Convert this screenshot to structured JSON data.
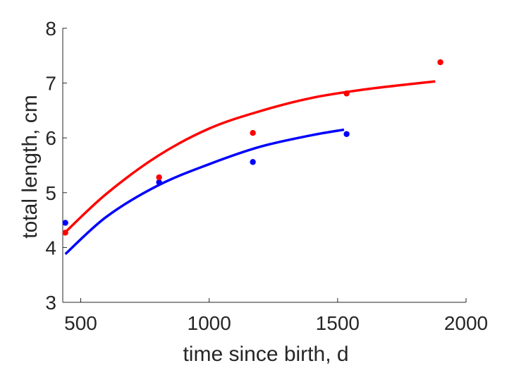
{
  "chart_data": {
    "type": "scatter",
    "title": "",
    "xlabel": "time since birth, d",
    "ylabel": "total length, cm",
    "xlim": [
      430,
      2000
    ],
    "ylim": [
      3,
      8
    ],
    "x_ticks": [
      500,
      1000,
      1500,
      2000
    ],
    "y_ticks": [
      3,
      4,
      5,
      6,
      7,
      8
    ],
    "grid": false,
    "legend": "none",
    "series": [
      {
        "color": "#0000ff",
        "points": [
          {
            "x": 440,
            "y": 4.45
          },
          {
            "x": 805,
            "y": 5.19
          },
          {
            "x": 1170,
            "y": 5.56
          },
          {
            "x": 1535,
            "y": 6.07
          }
        ],
        "fit": {
          "x": [
            440,
            600,
            800,
            1000,
            1200,
            1400,
            1525
          ],
          "y": [
            3.88,
            4.56,
            5.13,
            5.52,
            5.84,
            6.05,
            6.15
          ]
        }
      },
      {
        "color": "#ff0000",
        "points": [
          {
            "x": 440,
            "y": 4.27
          },
          {
            "x": 805,
            "y": 5.28
          },
          {
            "x": 1170,
            "y": 6.09
          },
          {
            "x": 1535,
            "y": 6.81
          },
          {
            "x": 1900,
            "y": 7.38
          }
        ],
        "fit": {
          "x": [
            440,
            600,
            800,
            1000,
            1200,
            1400,
            1600,
            1800,
            1880
          ],
          "y": [
            4.28,
            4.98,
            5.67,
            6.17,
            6.49,
            6.73,
            6.88,
            6.99,
            7.03
          ]
        }
      }
    ]
  }
}
